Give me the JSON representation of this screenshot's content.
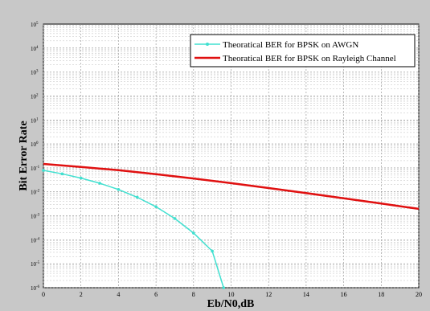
{
  "chart_data": {
    "type": "line",
    "title": "",
    "xlabel": "Eb/N0,dB",
    "ylabel": "Bit Error Rate",
    "xlim": [
      0,
      20
    ],
    "ylim_exponent": [
      -6,
      5
    ],
    "yscale": "log",
    "grid": true,
    "legend_position": "top-right",
    "x_ticks": [
      "0",
      "2",
      "4",
      "6",
      "8",
      "10",
      "12",
      "14",
      "16",
      "18",
      "20"
    ],
    "y_ticks": [
      {
        "base": "10",
        "exp": "-6"
      },
      {
        "base": "10",
        "exp": "-5"
      },
      {
        "base": "10",
        "exp": "-4"
      },
      {
        "base": "10",
        "exp": "-3"
      },
      {
        "base": "10",
        "exp": "-2"
      },
      {
        "base": "10",
        "exp": "-1"
      },
      {
        "base": "10",
        "exp": "0"
      },
      {
        "base": "10",
        "exp": "1"
      },
      {
        "base": "10",
        "exp": "2"
      },
      {
        "base": "10",
        "exp": "3"
      },
      {
        "base": "10",
        "exp": "4"
      },
      {
        "base": "10",
        "exp": "5"
      }
    ],
    "series": [
      {
        "name": "Theoratical BER for BPSK on AWGN",
        "color": "#40e0d0",
        "marker": "dot",
        "x": [
          0,
          1,
          2,
          3,
          4,
          5,
          6,
          7,
          8,
          9,
          9.6
        ],
        "y": [
          0.0786,
          0.0563,
          0.0375,
          0.0229,
          0.0125,
          0.00595,
          0.00239,
          0.000773,
          0.000191,
          3.36e-05,
          1e-06
        ]
      },
      {
        "name": "Theoratical BER for BPSK on Rayleigh Channel",
        "color": "#e01010",
        "marker": "none",
        "x": [
          0,
          2,
          4,
          6,
          8,
          10,
          12,
          14,
          16,
          18,
          20
        ],
        "y": [
          0.146,
          0.11,
          0.0797,
          0.0548,
          0.0361,
          0.023,
          0.0144,
          0.00887,
          0.00539,
          0.00325,
          0.00195
        ]
      }
    ]
  }
}
